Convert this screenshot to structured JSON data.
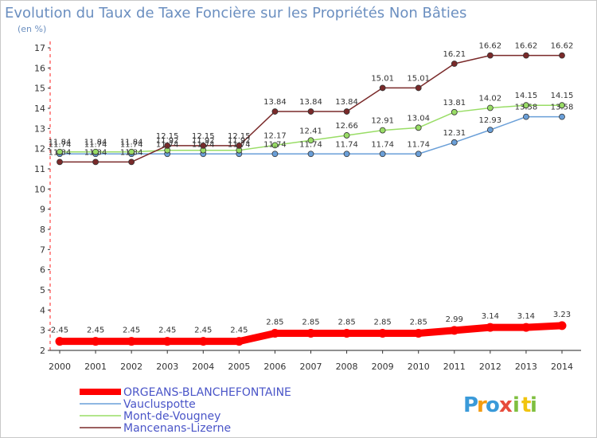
{
  "chart_data": {
    "type": "line",
    "title": "Evolution du Taux de Taxe Foncière sur les Propriétés Non Bâties",
    "ylabel": "(en %)",
    "xlabel": "",
    "ylim": [
      2,
      17
    ],
    "yticks": [
      2,
      3,
      4,
      5,
      6,
      7,
      8,
      9,
      10,
      11,
      12,
      13,
      14,
      15,
      16,
      17
    ],
    "x": [
      "2000",
      "2001",
      "2002",
      "2003",
      "2004",
      "2005",
      "2006",
      "2007",
      "2008",
      "2009",
      "2010",
      "2011",
      "2012",
      "2013",
      "2014"
    ],
    "grid": false,
    "legend_position": "bottom-left",
    "series": [
      {
        "name": "ORGEANS-BLANCHEFONTAINE",
        "color": "#ff0000",
        "values": [
          2.45,
          2.45,
          2.45,
          2.45,
          2.45,
          2.45,
          2.85,
          2.85,
          2.85,
          2.85,
          2.85,
          2.99,
          3.14,
          3.14,
          3.23
        ],
        "labels": [
          "2.45",
          "2.45",
          "2.45",
          "2.45",
          "2.45",
          "2.45",
          "2.85",
          "2.85",
          "2.85",
          "2.85",
          "2.85",
          "2.99",
          "3.14",
          "3.14",
          "3.23"
        ]
      },
      {
        "name": "Vaucluspotte",
        "color": "#6a9fd8",
        "values": [
          11.74,
          11.74,
          11.74,
          11.74,
          11.74,
          11.74,
          11.74,
          11.74,
          11.74,
          11.74,
          11.74,
          12.31,
          12.93,
          13.58,
          13.58
        ],
        "labels": [
          "11.74",
          "11.74",
          "11.74",
          "11.74",
          "11.74",
          "11.74",
          "11.74",
          "11.74",
          "11.74",
          "11.74",
          "11.74",
          "12.31",
          "12.93",
          "13.58",
          "13.58"
        ]
      },
      {
        "name": "Mont-de-Vougney",
        "color": "#99dd66",
        "values": [
          11.84,
          11.84,
          11.84,
          11.92,
          11.92,
          11.92,
          12.17,
          12.41,
          12.66,
          12.91,
          13.04,
          13.81,
          14.02,
          14.15,
          14.15
        ],
        "labels": [
          "11.84",
          "11.84",
          "11.84",
          "11.92",
          "11.92",
          "11.92",
          "12.17",
          "12.41",
          "12.66",
          "12.91",
          "13.04",
          "13.81",
          "14.02",
          "14.15",
          "14.15"
        ]
      },
      {
        "name": "Mancenans-Lizerne",
        "color": "#7a2a2a",
        "values": [
          11.34,
          11.34,
          11.34,
          12.15,
          12.15,
          12.15,
          13.84,
          13.84,
          13.84,
          15.01,
          15.01,
          16.21,
          16.62,
          16.62,
          16.62
        ],
        "labels": [
          "11.34",
          "11.34",
          "11.34",
          "12.15",
          "12.15",
          "12.15",
          "13.84",
          "13.84",
          "13.84",
          "15.01",
          "15.01",
          "16.21",
          "16.62",
          "16.62",
          "16.62"
        ]
      }
    ]
  },
  "logo": {
    "text": "Proxiti",
    "letters": [
      "P",
      "r",
      "o",
      "x",
      "i",
      "t",
      "i"
    ],
    "colors": [
      "#3a9ad9",
      "#f39c12",
      "#3a9ad9",
      "#e74c3c",
      "#7fbf3f",
      "#f1c40f",
      "#7fbf3f"
    ]
  }
}
